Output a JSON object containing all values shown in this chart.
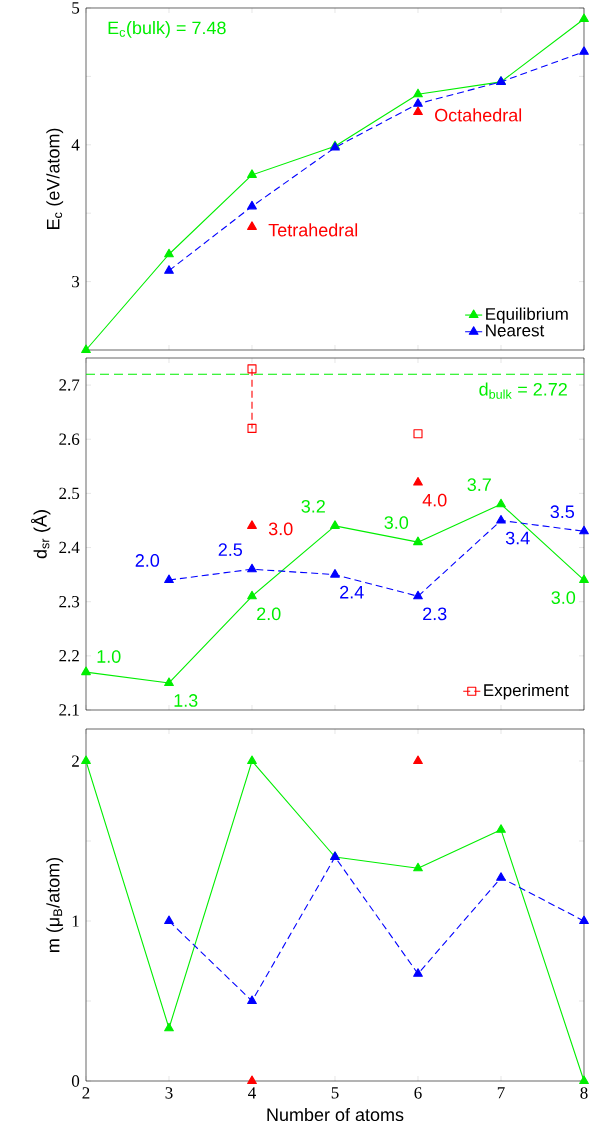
{
  "chart_data": [
    {
      "type": "line",
      "ylabel": "E$_{c}$ (eV/atom)",
      "x": [
        2,
        3,
        4,
        5,
        6,
        7,
        8
      ],
      "xlim": [
        2,
        8
      ],
      "xticks": [
        2,
        3,
        4,
        5,
        6,
        7,
        8
      ],
      "ylim": [
        2.5,
        5
      ],
      "yticks": [
        3,
        {
          "value": 3.5,
          "label": null
        },
        4,
        {
          "value": 4.5,
          "label": null
        },
        5
      ],
      "tick_labels": "y",
      "legend": "bottom right",
      "annotations": [
        "E$_{c}$(bulk) = 7.48",
        {
          "text": "Tetrahedral",
          "x": 4,
          "y": 3.4
        },
        {
          "text": "Octahedral",
          "x": 6,
          "y": 4.24
        }
      ],
      "series": [
        {
          "name": "Equilibrium",
          "color": "#00ee00",
          "marker": "triangle",
          "line_style": "solid",
          "values": [
            2.5,
            3.2,
            3.78,
            3.99,
            4.37,
            4.46,
            4.92
          ]
        },
        {
          "name": "Nearest",
          "color": "#0000ff",
          "marker": "triangle",
          "line_style": "dashed",
          "values": [
            null,
            3.08,
            3.55,
            3.98,
            4.3,
            4.46,
            4.68
          ]
        },
        {
          "type": "scatter",
          "color": "#ff0000",
          "marker": "triangle",
          "values": [
            null,
            null,
            3.4,
            null,
            4.24,
            null,
            null
          ]
        }
      ]
    },
    {
      "type": "line",
      "ylabel": "d$_{sr}$ (Å)",
      "x": [
        2,
        3,
        4,
        5,
        6,
        7,
        8
      ],
      "xlim": [
        2,
        8
      ],
      "xticks": [
        2,
        3,
        4,
        5,
        6,
        7,
        8
      ],
      "ylim": [
        2.1,
        2.75
      ],
      "yticks": [
        2.1,
        2.2,
        2.3,
        2.4,
        2.5,
        2.6,
        2.7
      ],
      "tick_labels": "y",
      "legend": "bottom right",
      "ref_lines": [
        {
          "axis": "y",
          "value": 2.72,
          "label": "d$_{bulk}$ = 2.72",
          "color": "#00ee00",
          "line_style": "dashed"
        }
      ],
      "annotations": [
        {
          "text": "1.0",
          "x": 2,
          "y": 2.17
        },
        {
          "text": "1.3",
          "x": 3,
          "y": 2.15
        },
        {
          "text": "2.0",
          "x": 4,
          "y": 2.31
        },
        {
          "text": "3.2",
          "x": 5,
          "y": 2.44
        },
        {
          "text": "3.0",
          "x": 6,
          "y": 2.41
        },
        {
          "text": "3.7",
          "x": 7,
          "y": 2.48
        },
        {
          "text": "3.0",
          "x": 8,
          "y": 2.34
        },
        {
          "text": "2.0",
          "x": 3,
          "y": 2.34
        },
        {
          "text": "2.5",
          "x": 4,
          "y": 2.36
        },
        {
          "text": "2.4",
          "x": 5,
          "y": 2.35
        },
        {
          "text": "2.3",
          "x": 6,
          "y": 2.31
        },
        {
          "text": "3.4",
          "x": 7,
          "y": 2.45
        },
        {
          "text": "3.5",
          "x": 8,
          "y": 2.43
        },
        {
          "text": "3.0",
          "x": 4,
          "y": 2.44
        },
        {
          "text": "4.0",
          "x": 6,
          "y": 2.52
        }
      ],
      "series": [
        {
          "color": "#00ee00",
          "marker": "triangle",
          "line_style": "solid",
          "values": [
            2.17,
            2.15,
            2.31,
            2.44,
            2.41,
            2.48,
            2.34
          ]
        },
        {
          "color": "#0000ff",
          "marker": "triangle",
          "line_style": "dashed",
          "values": [
            null,
            2.34,
            2.36,
            2.35,
            2.31,
            2.45,
            2.43
          ]
        },
        {
          "type": "scatter",
          "color": "#ff0000",
          "marker": "triangle",
          "values": [
            null,
            null,
            2.44,
            null,
            2.52,
            null,
            null
          ]
        },
        {
          "name": "Experiment",
          "color": "#ff0000",
          "marker": "square",
          "line_style": "dashed",
          "x": [
            4,
            4
          ],
          "values": [
            2.73,
            2.62
          ]
        },
        {
          "type": "scatter",
          "color": "#ff0000",
          "marker": "square",
          "values": [
            null,
            null,
            null,
            null,
            2.61,
            null,
            null
          ]
        }
      ]
    },
    {
      "type": "line",
      "xlabel": "Number of atoms",
      "ylabel": "m (μ$_{B}$/atom)",
      "x": [
        2,
        3,
        4,
        5,
        6,
        7,
        8
      ],
      "xlim": [
        2,
        8
      ],
      "xticks": [
        2,
        3,
        4,
        5,
        6,
        7,
        8
      ],
      "ylim": [
        0,
        2.2
      ],
      "yticks": [
        0,
        {
          "value": 0.5,
          "label": null
        },
        1,
        {
          "value": 1.5,
          "label": null
        },
        2
      ],
      "series": [
        {
          "color": "#00ee00",
          "marker": "triangle",
          "line_style": "solid",
          "values": [
            2,
            0.33,
            2,
            1.4,
            1.33,
            1.57,
            0
          ]
        },
        {
          "color": "#0000ff",
          "marker": "triangle",
          "line_style": "dashed",
          "values": [
            null,
            1.0,
            0.5,
            1.4,
            0.67,
            1.27,
            1.0
          ]
        },
        {
          "type": "scatter",
          "color": "#ff0000",
          "marker": "triangle",
          "values": [
            null,
            null,
            0,
            null,
            2,
            null,
            null
          ]
        }
      ]
    }
  ]
}
